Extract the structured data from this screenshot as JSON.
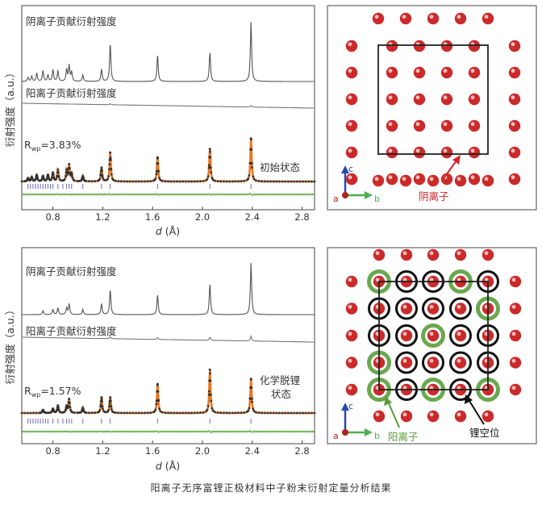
{
  "caption": "阳离子无序富锂正极材料中子粉末衍射定量分析结果",
  "chart_data": [
    {
      "type": "line",
      "panel": "top-left",
      "xlabel_var": "d",
      "xlabel_unit": "(Å)",
      "ylabel": "衍射强度（a.u.）",
      "xlim": [
        0.55,
        2.9
      ],
      "xticks": [
        0.8,
        1.2,
        1.6,
        2.0,
        2.4,
        2.8
      ],
      "xtick_labels": [
        "0.8",
        "1.2",
        "1.6",
        "2.0",
        "2.4",
        "2.8"
      ],
      "series_labels": [
        "阴离子贡献衍射强度",
        "阳离子贡献衍射强度"
      ],
      "rwp_label": "R",
      "rwp_sub": "wp",
      "rwp_value": "=3.83%",
      "state_labels": [
        "初始状态"
      ],
      "anion_peaks": [
        {
          "d": 0.6,
          "h": 0.06
        },
        {
          "d": 0.63,
          "h": 0.08
        },
        {
          "d": 0.67,
          "h": 0.12
        },
        {
          "d": 0.72,
          "h": 0.16
        },
        {
          "d": 0.76,
          "h": 0.1
        },
        {
          "d": 0.8,
          "h": 0.18
        },
        {
          "d": 0.84,
          "h": 0.16
        },
        {
          "d": 0.91,
          "h": 0.18
        },
        {
          "d": 0.93,
          "h": 0.24
        },
        {
          "d": 0.95,
          "h": 0.14
        },
        {
          "d": 1.04,
          "h": 0.1
        },
        {
          "d": 1.19,
          "h": 0.18
        },
        {
          "d": 1.26,
          "h": 0.58
        },
        {
          "d": 1.64,
          "h": 0.4
        },
        {
          "d": 2.06,
          "h": 0.44
        },
        {
          "d": 2.39,
          "h": 0.9
        }
      ],
      "cation_peaks": [
        {
          "d": 1.26,
          "h": 0.02
        },
        {
          "d": 2.39,
          "h": 0.03
        }
      ],
      "fit_peaks": [
        {
          "d": 0.6,
          "h": 0.06
        },
        {
          "d": 0.63,
          "h": 0.08
        },
        {
          "d": 0.67,
          "h": 0.12
        },
        {
          "d": 0.72,
          "h": 0.1
        },
        {
          "d": 0.76,
          "h": 0.12
        },
        {
          "d": 0.8,
          "h": 0.16
        },
        {
          "d": 0.84,
          "h": 0.22
        },
        {
          "d": 0.91,
          "h": 0.2
        },
        {
          "d": 0.93,
          "h": 0.3
        },
        {
          "d": 0.95,
          "h": 0.14
        },
        {
          "d": 1.04,
          "h": 0.1
        },
        {
          "d": 1.19,
          "h": 0.26
        },
        {
          "d": 1.26,
          "h": 0.55
        },
        {
          "d": 1.64,
          "h": 0.46
        },
        {
          "d": 2.06,
          "h": 0.62
        },
        {
          "d": 2.39,
          "h": 0.82
        }
      ],
      "tick_positions": [
        0.6,
        0.62,
        0.64,
        0.66,
        0.68,
        0.7,
        0.72,
        0.74,
        0.76,
        0.78,
        0.8,
        0.84,
        0.88,
        0.91,
        0.93,
        0.95,
        1.04,
        1.19,
        1.26,
        1.64,
        2.06,
        2.39
      ]
    },
    {
      "type": "line",
      "panel": "bottom-left",
      "xlabel_var": "d",
      "xlabel_unit": "(Å)",
      "ylabel": "衍射强度（a.u.）",
      "xlim": [
        0.55,
        2.9
      ],
      "xticks": [
        0.8,
        1.2,
        1.6,
        2.0,
        2.4,
        2.8
      ],
      "xtick_labels": [
        "0.8",
        "1.2",
        "1.6",
        "2.0",
        "2.4",
        "2.8"
      ],
      "series_labels": [
        "阴离子贡献衍射强度",
        "阳离子贡献衍射强度"
      ],
      "rwp_label": "R",
      "rwp_sub": "wp",
      "rwp_value": "=1.57%",
      "state_labels": [
        "化学脱锂",
        "状态"
      ],
      "anion_peaks": [
        {
          "d": 0.72,
          "h": 0.06
        },
        {
          "d": 0.8,
          "h": 0.08
        },
        {
          "d": 0.84,
          "h": 0.1
        },
        {
          "d": 0.91,
          "h": 0.1
        },
        {
          "d": 0.93,
          "h": 0.16
        },
        {
          "d": 1.04,
          "h": 0.08
        },
        {
          "d": 1.19,
          "h": 0.16
        },
        {
          "d": 1.26,
          "h": 0.38
        },
        {
          "d": 1.64,
          "h": 0.3
        },
        {
          "d": 2.06,
          "h": 0.46
        },
        {
          "d": 2.39,
          "h": 0.78
        }
      ],
      "cation_peaks": [
        {
          "d": 1.26,
          "h": 0.04
        },
        {
          "d": 1.64,
          "h": 0.04
        },
        {
          "d": 2.06,
          "h": 0.06
        },
        {
          "d": 2.39,
          "h": 0.1
        }
      ],
      "fit_peaks": [
        {
          "d": 0.72,
          "h": 0.06
        },
        {
          "d": 0.8,
          "h": 0.08
        },
        {
          "d": 0.84,
          "h": 0.14
        },
        {
          "d": 0.91,
          "h": 0.12
        },
        {
          "d": 0.93,
          "h": 0.26
        },
        {
          "d": 1.04,
          "h": 0.1
        },
        {
          "d": 1.19,
          "h": 0.3
        },
        {
          "d": 1.26,
          "h": 0.3
        },
        {
          "d": 1.64,
          "h": 0.56
        },
        {
          "d": 2.06,
          "h": 0.84
        },
        {
          "d": 2.39,
          "h": 0.66
        }
      ],
      "tick_positions": [
        0.6,
        0.62,
        0.64,
        0.66,
        0.68,
        0.7,
        0.72,
        0.74,
        0.76,
        0.8,
        0.84,
        0.88,
        0.91,
        0.93,
        0.95,
        1.04,
        1.19,
        1.26,
        1.64,
        2.06,
        2.39
      ]
    }
  ],
  "structures": [
    {
      "panel": "top-right",
      "axis_labels": {
        "a": "a",
        "b": "b",
        "c": "c"
      },
      "annotation": "阴离子",
      "colors": {
        "atom": "#cc2a2a",
        "frame": "#222222",
        "annotation": "#d0242a"
      }
    },
    {
      "panel": "bottom-right",
      "axis_labels": {
        "a": "a",
        "b": "b",
        "c": "c"
      },
      "annotations": [
        "阳离子",
        "锂空位"
      ],
      "colors": {
        "atom": "#cc2a2a",
        "cation_ring": "#6aa84f",
        "vacancy_ring": "#111111",
        "frame": "#222222",
        "cation_label": "#5a9a3a",
        "vacancy_label": "#111111"
      }
    }
  ],
  "colors": {
    "anion_curve": "#555555",
    "cation_curve": "#777777",
    "fit_curve": "#e87722",
    "points": "#333333",
    "ticks": "#6a6ab8",
    "diff": "#6ab04c"
  }
}
